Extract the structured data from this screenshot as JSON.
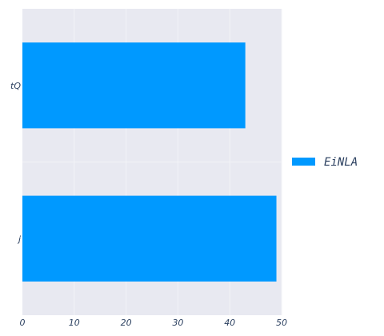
{
  "chart_data": {
    "type": "bar",
    "orientation": "horizontal",
    "categories": [
      "j",
      "tQ"
    ],
    "series": [
      {
        "name": "EiNLA",
        "values": [
          49,
          43
        ],
        "color": "#0099ff"
      }
    ],
    "xlim": [
      0,
      50
    ],
    "x_ticks": [
      0,
      10,
      20,
      30,
      40,
      50
    ],
    "x_tick_labels": [
      "0",
      "10",
      "20",
      "30",
      "40",
      "50"
    ],
    "grid": true,
    "plot_background": "#e8e9f1",
    "grid_color": "#f2f3f7",
    "legend_position": "right"
  }
}
